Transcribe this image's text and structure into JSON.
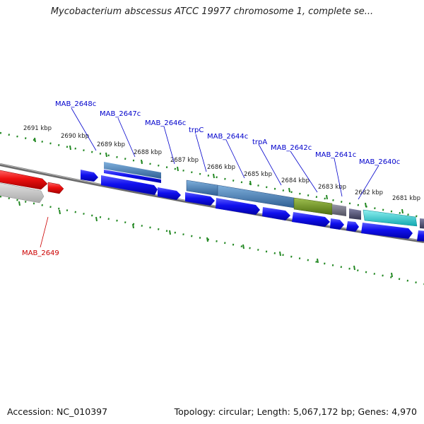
{
  "title": "Mycobacterium abscessus ATCC 19977 chromosome 1, complete se...",
  "footer": {
    "accession": "Accession: NC_010397",
    "summary": "Topology: circular; Length: 5,067,172 bp; Genes: 4,970"
  },
  "colors": {
    "forward_cds": "#1010ee",
    "highlight_red": "#ee1111",
    "label_blue": "#0000cc",
    "label_red": "#cc0000",
    "tick_green": "#228822",
    "backbone": "#777777",
    "trp_steel": "#4a7fb0",
    "olive": "#6f8f22",
    "slate": "#505070",
    "cyan": "#22cccc"
  },
  "ruler": [
    "2691 kbp",
    "2690 kbp",
    "2689 kbp",
    "2688 kbp",
    "2687 kbp",
    "2686 kbp",
    "2685 kbp",
    "2684 kbp",
    "2683 kbp",
    "2682 kbp",
    "2681 kbp"
  ],
  "gene_labels": [
    "MAB_2648c",
    "MAB_2647c",
    "MAB_2646c",
    "trpC",
    "MAB_2644c",
    "trpA",
    "MAB_2642c",
    "MAB_2641c",
    "MAB_2640c"
  ],
  "highlight_label": "MAB_2649"
}
